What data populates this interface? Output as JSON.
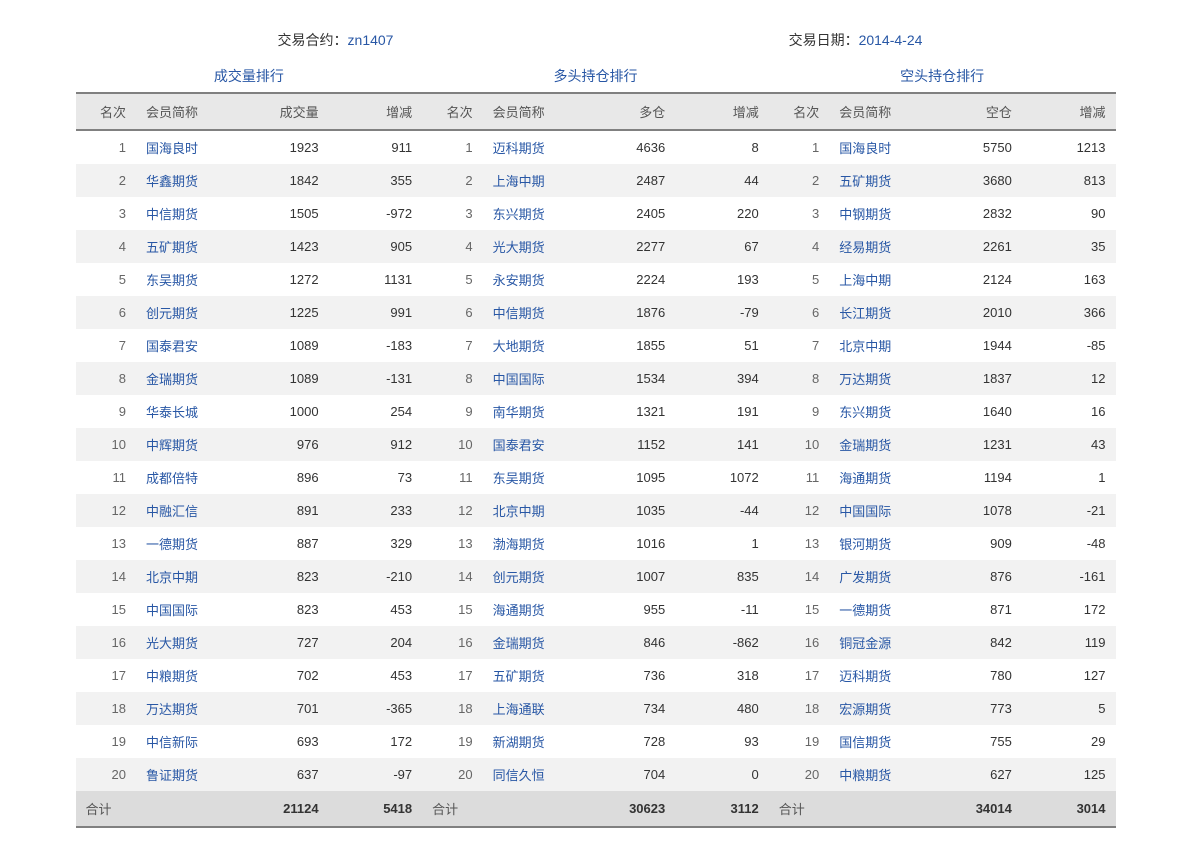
{
  "header": {
    "contract_label": "交易合约：",
    "contract_value": "zn1407",
    "date_label": "交易日期：",
    "date_value": "2014-4-24"
  },
  "sections": {
    "volume_title": "成交量排行",
    "long_title": "多头持仓排行",
    "short_title": "空头持仓排行"
  },
  "columns": {
    "rank": "名次",
    "member": "会员简称",
    "volume": "成交量",
    "change": "增减",
    "long_pos": "多仓",
    "short_pos": "空仓",
    "total": "合计"
  },
  "colors": {
    "link": "#2857a5",
    "text": "#333333",
    "header_bg": "#e8e8e8",
    "stripe_bg": "#f2f2f2",
    "footer_bg": "#dcdcdc",
    "border": "#808080"
  },
  "table": {
    "rows": [
      {
        "r": 1,
        "vm": "国海良时",
        "vv": 1923,
        "vc": 911,
        "lm": "迈科期货",
        "lv": 4636,
        "lc": 8,
        "sm": "国海良时",
        "sv": 5750,
        "sc": 1213
      },
      {
        "r": 2,
        "vm": "华鑫期货",
        "vv": 1842,
        "vc": 355,
        "lm": "上海中期",
        "lv": 2487,
        "lc": 44,
        "sm": "五矿期货",
        "sv": 3680,
        "sc": 813
      },
      {
        "r": 3,
        "vm": "中信期货",
        "vv": 1505,
        "vc": -972,
        "lm": "东兴期货",
        "lv": 2405,
        "lc": 220,
        "sm": "中钢期货",
        "sv": 2832,
        "sc": 90
      },
      {
        "r": 4,
        "vm": "五矿期货",
        "vv": 1423,
        "vc": 905,
        "lm": "光大期货",
        "lv": 2277,
        "lc": 67,
        "sm": "经易期货",
        "sv": 2261,
        "sc": 35
      },
      {
        "r": 5,
        "vm": "东吴期货",
        "vv": 1272,
        "vc": 1131,
        "lm": "永安期货",
        "lv": 2224,
        "lc": 193,
        "sm": "上海中期",
        "sv": 2124,
        "sc": 163
      },
      {
        "r": 6,
        "vm": "创元期货",
        "vv": 1225,
        "vc": 991,
        "lm": "中信期货",
        "lv": 1876,
        "lc": -79,
        "sm": "长江期货",
        "sv": 2010,
        "sc": 366
      },
      {
        "r": 7,
        "vm": "国泰君安",
        "vv": 1089,
        "vc": -183,
        "lm": "大地期货",
        "lv": 1855,
        "lc": 51,
        "sm": "北京中期",
        "sv": 1944,
        "sc": -85
      },
      {
        "r": 8,
        "vm": "金瑞期货",
        "vv": 1089,
        "vc": -131,
        "lm": "中国国际",
        "lv": 1534,
        "lc": 394,
        "sm": "万达期货",
        "sv": 1837,
        "sc": 12
      },
      {
        "r": 9,
        "vm": "华泰长城",
        "vv": 1000,
        "vc": 254,
        "lm": "南华期货",
        "lv": 1321,
        "lc": 191,
        "sm": "东兴期货",
        "sv": 1640,
        "sc": 16
      },
      {
        "r": 10,
        "vm": "中辉期货",
        "vv": 976,
        "vc": 912,
        "lm": "国泰君安",
        "lv": 1152,
        "lc": 141,
        "sm": "金瑞期货",
        "sv": 1231,
        "sc": 43
      },
      {
        "r": 11,
        "vm": "成都倍特",
        "vv": 896,
        "vc": 73,
        "lm": "东吴期货",
        "lv": 1095,
        "lc": 1072,
        "sm": "海通期货",
        "sv": 1194,
        "sc": 1
      },
      {
        "r": 12,
        "vm": "中融汇信",
        "vv": 891,
        "vc": 233,
        "lm": "北京中期",
        "lv": 1035,
        "lc": -44,
        "sm": "中国国际",
        "sv": 1078,
        "sc": -21
      },
      {
        "r": 13,
        "vm": "一德期货",
        "vv": 887,
        "vc": 329,
        "lm": "渤海期货",
        "lv": 1016,
        "lc": 1,
        "sm": "银河期货",
        "sv": 909,
        "sc": -48
      },
      {
        "r": 14,
        "vm": "北京中期",
        "vv": 823,
        "vc": -210,
        "lm": "创元期货",
        "lv": 1007,
        "lc": 835,
        "sm": "广发期货",
        "sv": 876,
        "sc": -161
      },
      {
        "r": 15,
        "vm": "中国国际",
        "vv": 823,
        "vc": 453,
        "lm": "海通期货",
        "lv": 955,
        "lc": -11,
        "sm": "一德期货",
        "sv": 871,
        "sc": 172
      },
      {
        "r": 16,
        "vm": "光大期货",
        "vv": 727,
        "vc": 204,
        "lm": "金瑞期货",
        "lv": 846,
        "lc": -862,
        "sm": "铜冠金源",
        "sv": 842,
        "sc": 119
      },
      {
        "r": 17,
        "vm": "中粮期货",
        "vv": 702,
        "vc": 453,
        "lm": "五矿期货",
        "lv": 736,
        "lc": 318,
        "sm": "迈科期货",
        "sv": 780,
        "sc": 127
      },
      {
        "r": 18,
        "vm": "万达期货",
        "vv": 701,
        "vc": -365,
        "lm": "上海通联",
        "lv": 734,
        "lc": 480,
        "sm": "宏源期货",
        "sv": 773,
        "sc": 5
      },
      {
        "r": 19,
        "vm": "中信新际",
        "vv": 693,
        "vc": 172,
        "lm": "新湖期货",
        "lv": 728,
        "lc": 93,
        "sm": "国信期货",
        "sv": 755,
        "sc": 29
      },
      {
        "r": 20,
        "vm": "鲁证期货",
        "vv": 637,
        "vc": -97,
        "lm": "同信久恒",
        "lv": 704,
        "lc": 0,
        "sm": "中粮期货",
        "sv": 627,
        "sc": 125
      }
    ],
    "totals": {
      "vv": 21124,
      "vc": 5418,
      "lv": 30623,
      "lc": 3112,
      "sv": 34014,
      "sc": 3014
    }
  }
}
